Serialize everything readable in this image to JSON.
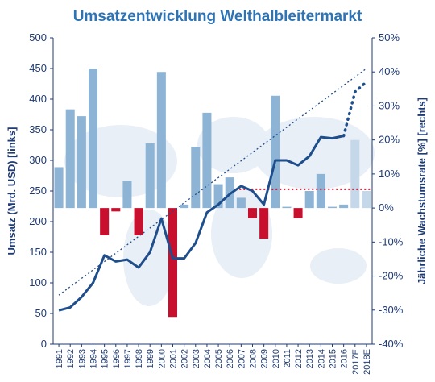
{
  "chart_data": {
    "type": "bar+line",
    "title": "Umsatzentwicklung Welthalbleitermarkt",
    "ylabel_left": "Umsatz (Mrd. USD) [links]",
    "ylabel_right": "Jährliche Wachstumsrate [%] [rechts]",
    "ylim_left": [
      0,
      500
    ],
    "ylim_right": [
      -40,
      50
    ],
    "yticks_left": [
      "0",
      "50",
      "100",
      "150",
      "200",
      "250",
      "300",
      "350",
      "400",
      "450",
      "500"
    ],
    "yticks_right": [
      "-40%",
      "-30%",
      "-20%",
      "-10%",
      "0%",
      "10%",
      "20%",
      "30%",
      "40%",
      "50%"
    ],
    "categories": [
      "1991",
      "1992",
      "1993",
      "1994",
      "1995",
      "1996",
      "1997",
      "1998",
      "1999",
      "2000",
      "2001",
      "2002",
      "2003",
      "2004",
      "2005",
      "2006",
      "2007",
      "2008",
      "2009",
      "2010",
      "2011",
      "2012",
      "2013",
      "2014",
      "2015",
      "2016",
      "2017E",
      "2018E"
    ],
    "growth_rate": [
      12,
      29,
      27,
      41,
      -8,
      -1,
      8,
      -8,
      19,
      40,
      -32,
      1,
      18,
      28,
      7,
      9,
      3,
      -3,
      -9,
      33,
      0,
      -3,
      5,
      10,
      0,
      1,
      20,
      5
    ],
    "growth_estimated_from_index": 26,
    "revenue": [
      55,
      60,
      77,
      100,
      145,
      135,
      138,
      125,
      150,
      205,
      140,
      140,
      165,
      215,
      228,
      245,
      258,
      250,
      228,
      300,
      300,
      292,
      307,
      338,
      336,
      340,
      412,
      428
    ],
    "revenue_estimated_from_index": 25,
    "trend_line": {
      "x_start": "1991",
      "x_end": "2018E",
      "y_start": 80,
      "y_end": 450
    },
    "average_growth": {
      "value": 5.5,
      "x_start": "2007",
      "x_end": "2018E"
    },
    "colors": {
      "positive_bar": "#8db3d5",
      "negative_bar": "#c8102e",
      "estimate_bar": "#c4d8ea",
      "revenue_line": "#1f4e8c",
      "trend_line": "#1f4e8c",
      "average_line": "#c8102e",
      "title": "#2e74b5",
      "axis": "#1f3b73"
    }
  }
}
